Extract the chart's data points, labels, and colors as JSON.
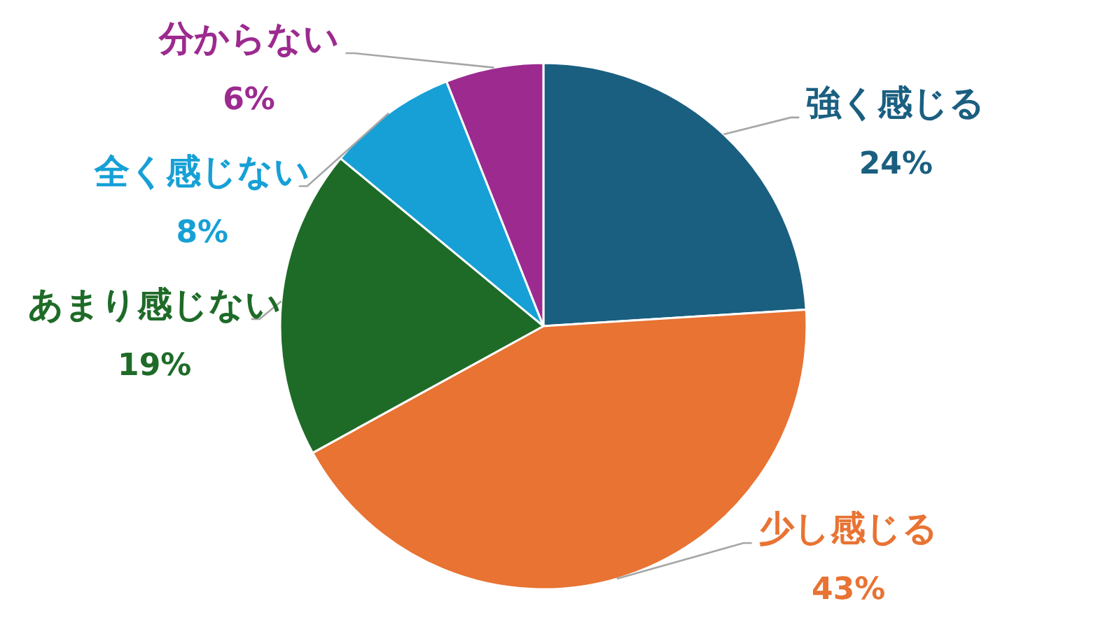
{
  "chart_data": {
    "type": "pie",
    "categories": [
      "強く感じる",
      "少し感じる",
      "あまり感じない",
      "全く感じない",
      "分からない"
    ],
    "values": [
      24,
      43,
      19,
      8,
      6
    ],
    "value_labels": [
      "24%",
      "43%",
      "19%",
      "8%",
      "6%"
    ],
    "colors": [
      "#1a5f80",
      "#e87333",
      "#1e6b28",
      "#16a0d6",
      "#9c2a8f"
    ]
  }
}
